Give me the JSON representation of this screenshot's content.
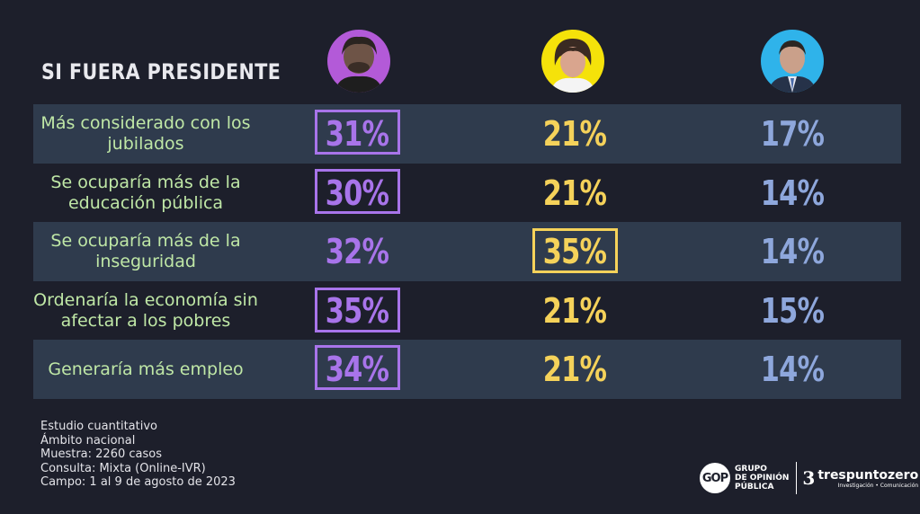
{
  "title": "SI FUERA PRESIDENTE",
  "candidates": [
    {
      "icon": "candidate-1-portrait",
      "bg_color": "#b35ad8",
      "value_color": "#a874ea"
    },
    {
      "icon": "candidate-2-portrait",
      "bg_color": "#f5e20a",
      "value_color": "#f5d25a"
    },
    {
      "icon": "candidate-3-portrait",
      "bg_color": "#2fb3ea",
      "value_color": "#8ea7dc"
    }
  ],
  "chart_data": {
    "type": "table",
    "title": "SI FUERA PRESIDENTE",
    "rows": [
      {
        "label": "Más considerado con los jubilados",
        "values": [
          "31%",
          "21%",
          "17%"
        ],
        "highlight": 0
      },
      {
        "label": "Se ocuparía más de la educación pública",
        "values": [
          "30%",
          "21%",
          "14%"
        ],
        "highlight": 0
      },
      {
        "label": "Se ocuparía más de la inseguridad",
        "values": [
          "32%",
          "35%",
          "14%"
        ],
        "highlight": 1
      },
      {
        "label": "Ordenaría la economía sin afectar a los pobres",
        "values": [
          "35%",
          "21%",
          "15%"
        ],
        "highlight": 0
      },
      {
        "label": "Generaría más empleo",
        "values": [
          "34%",
          "21%",
          "14%"
        ],
        "highlight": 0
      }
    ]
  },
  "footer": {
    "lines": [
      "Estudio cuantitativo",
      "Ámbito nacional",
      "Muestra: 2260 casos",
      "Consulta: Mixta (Online-IVR)",
      "Campo: 1 al 9 de agosto de 2023"
    ]
  },
  "logos": {
    "gop_mark": "GOP",
    "gop_text": [
      "GRUPO",
      "DE OPINIÓN",
      "PÚBLICA"
    ],
    "tres_name": "trespuntozero",
    "tres_sub": "Investigación • Comunicación"
  }
}
